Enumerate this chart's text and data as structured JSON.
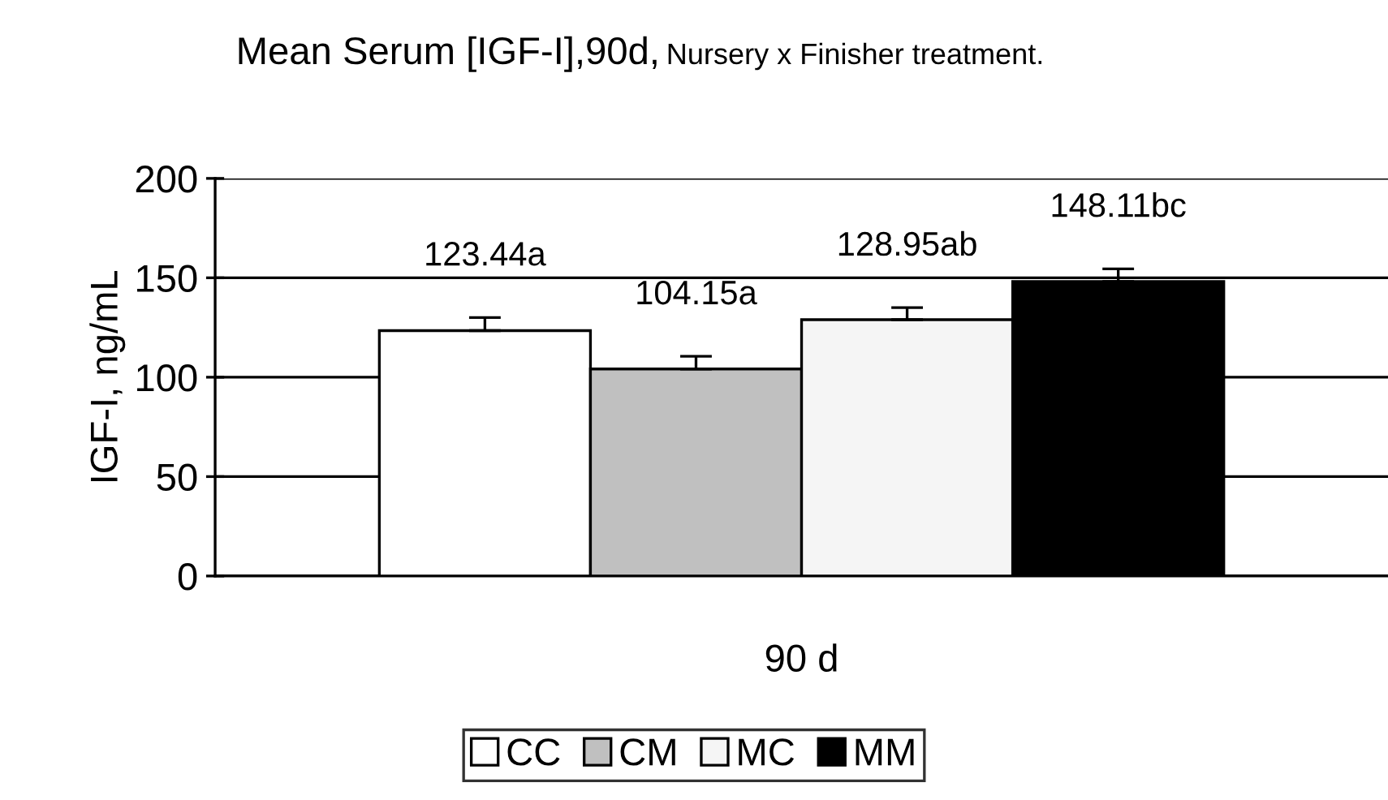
{
  "chart_data": {
    "type": "bar",
    "title": "Mean Serum [IGF-I],90d,",
    "subtitle": "Nursery x Finisher treatment.",
    "ylabel": "IGF-I, ng/mL",
    "categories": [
      "90 d"
    ],
    "series": [
      {
        "name": "CC",
        "color": "#ffffff",
        "values": [
          123.44
        ],
        "value_labels": [
          "123.44a"
        ],
        "errors": [
          [
            123.44,
            130
          ]
        ]
      },
      {
        "name": "CM",
        "color": "#c0c0c0",
        "values": [
          104.15
        ],
        "value_labels": [
          "104.15a"
        ],
        "errors": [
          [
            104.15,
            110.5
          ]
        ]
      },
      {
        "name": "MC",
        "color": "#f5f5f5",
        "values": [
          128.95
        ],
        "value_labels": [
          "128.95ab"
        ],
        "errors": [
          [
            128.95,
            135
          ]
        ]
      },
      {
        "name": "MM",
        "color": "#000000",
        "values": [
          148.11
        ],
        "value_labels": [
          "148.11bc"
        ],
        "errors": [
          [
            148.11,
            154.5
          ]
        ]
      }
    ],
    "ylim": [
      0,
      200
    ],
    "yticks": [
      0,
      50,
      100,
      150,
      200
    ],
    "grid": "y",
    "legend": "bottom"
  }
}
